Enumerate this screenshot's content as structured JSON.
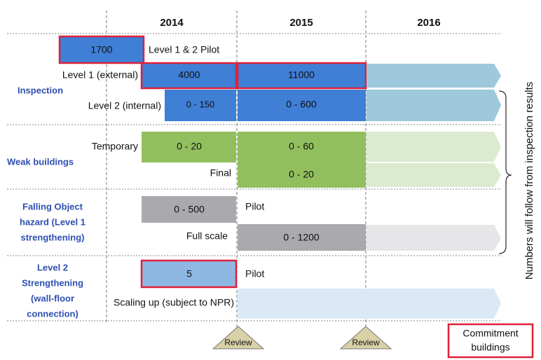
{
  "header": {
    "years": [
      "2014",
      "2015",
      "2016"
    ]
  },
  "inspection": {
    "label": "Inspection",
    "pilot": {
      "value": "1700",
      "label": "Level 1 & 2 Pilot"
    },
    "level1": {
      "label": "Level 1 (external)",
      "cells": [
        "4000",
        "11000"
      ]
    },
    "level2": {
      "label": "Level 2 (internal)",
      "cells": [
        "0 - 150",
        "0 - 600"
      ]
    }
  },
  "weak_buildings": {
    "label": "Weak buildings",
    "temporary": {
      "label": "Temporary",
      "cells": [
        "0 - 20",
        "0 - 60"
      ]
    },
    "final": {
      "label": "Final",
      "cells": [
        "0 - 20"
      ]
    }
  },
  "falling_object": {
    "label": [
      "Falling Object",
      "hazard (Level 1",
      "strengthening)"
    ],
    "pilot": {
      "value": "0 - 500",
      "label": "Pilot"
    },
    "full_scale": {
      "label": "Full scale",
      "cells": [
        "0 - 1200"
      ]
    }
  },
  "level2_strengthening": {
    "label": [
      "Level 2",
      "Strengthening",
      "(wall-floor",
      "connection)"
    ],
    "pilot": {
      "value": "5",
      "label": "Pilot"
    },
    "scaling_up": {
      "label": "Scaling up (subject to NPR)"
    }
  },
  "reviews": [
    "Review",
    "Review"
  ],
  "side_note": "Numbers will follow from inspection results",
  "legend": [
    "Commitment",
    "buildings"
  ]
}
